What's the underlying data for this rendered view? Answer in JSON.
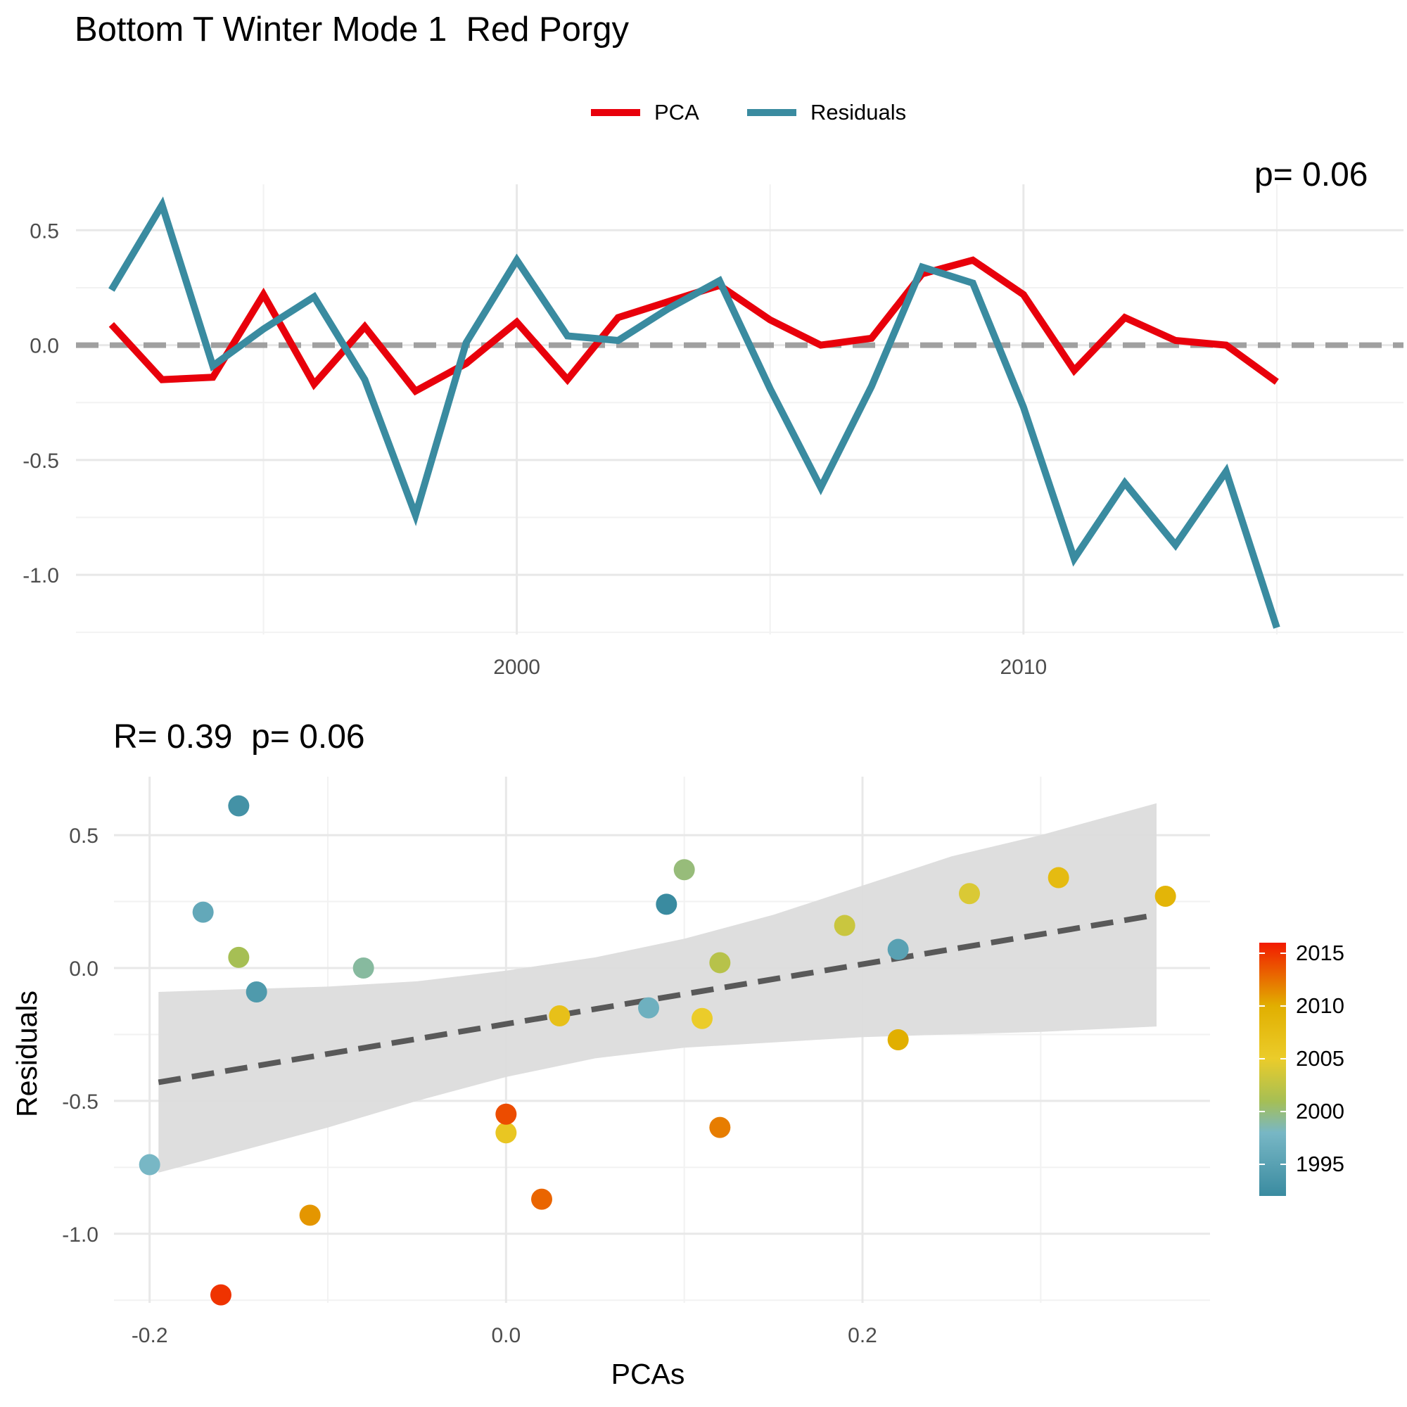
{
  "title": "Bottom T Winter Mode 1  Red Porgy",
  "legend": {
    "items": [
      {
        "label": "PCA",
        "color": "#E8000B"
      },
      {
        "label": "Residuals",
        "color": "#3A8BA0"
      }
    ]
  },
  "colors": {
    "pca": "#E8000B",
    "residuals": "#3A8BA0",
    "zero_line": "#A0A0A0",
    "grid_major": "#E8E8E8",
    "grid_minor": "#F2F2F2",
    "fit_line": "#595959",
    "ribbon": "#DCDCDC"
  },
  "top_corner_text": "p= 0.06",
  "scatter_title": "R= 0.39  p= 0.06",
  "chart_data": [
    {
      "type": "line",
      "title": "Bottom T Winter Mode 1  Red Porgy",
      "xlabel": "",
      "ylabel": "",
      "xlim": [
        1991.3,
        2017.5
      ],
      "ylim": [
        -1.26,
        0.7
      ],
      "x_ticks": [
        2000,
        2010
      ],
      "x_tick_labels": [
        "2000",
        "2010"
      ],
      "y_ticks": [
        0.5,
        0.0,
        -0.5,
        -1.0
      ],
      "y_tick_labels": [
        "0.5",
        "0.0",
        "-0.5",
        "-1.0"
      ],
      "zero_line": 0,
      "grid": true,
      "legend_position": "top",
      "x": [
        1992,
        1993,
        1994,
        1995,
        1996,
        1997,
        1998,
        1999,
        2000,
        2001,
        2002,
        2003,
        2004,
        2005,
        2006,
        2007,
        2008,
        2009,
        2010,
        2011,
        2012,
        2013,
        2014,
        2015,
        2016
      ],
      "series": [
        {
          "name": "PCA",
          "values": [
            0.09,
            -0.15,
            -0.14,
            0.22,
            -0.17,
            0.08,
            -0.2,
            -0.08,
            0.1,
            -0.15,
            0.12,
            0.19,
            0.26,
            0.11,
            0.0,
            0.03,
            0.31,
            0.37,
            0.22,
            -0.11,
            0.12,
            0.02,
            0.0,
            -0.16,
            null
          ]
        },
        {
          "name": "Residuals",
          "values": [
            0.24,
            0.61,
            -0.09,
            0.07,
            0.21,
            -0.15,
            -0.74,
            0.01,
            0.37,
            0.04,
            0.02,
            0.16,
            0.28,
            -0.19,
            -0.62,
            -0.18,
            0.34,
            0.27,
            -0.27,
            -0.93,
            -0.6,
            -0.87,
            -0.55,
            -1.23,
            null
          ]
        }
      ]
    },
    {
      "type": "scatter",
      "title": "R= 0.39  p= 0.06",
      "xlabel": "PCAs",
      "ylabel": "Residuals",
      "xlim": [
        -0.22,
        0.395
      ],
      "ylim": [
        -1.26,
        0.72
      ],
      "x_ticks": [
        -0.2,
        0.0,
        0.2
      ],
      "x_tick_labels": [
        "-0.2",
        "0.0",
        "0.2"
      ],
      "y_ticks": [
        0.5,
        0.0,
        -0.5,
        -1.0
      ],
      "y_tick_labels": [
        "0.5",
        "0.0",
        "-0.5",
        "-1.0"
      ],
      "grid": true,
      "legend_position": "right",
      "points": [
        {
          "x": 0.09,
          "y": 0.24,
          "year": 1992
        },
        {
          "x": -0.15,
          "y": 0.61,
          "year": 1993
        },
        {
          "x": -0.14,
          "y": -0.09,
          "year": 1994
        },
        {
          "x": 0.22,
          "y": 0.07,
          "year": 1995
        },
        {
          "x": -0.17,
          "y": 0.21,
          "year": 1996
        },
        {
          "x": 0.08,
          "y": -0.15,
          "year": 1997
        },
        {
          "x": -0.2,
          "y": -0.74,
          "year": 1998
        },
        {
          "x": -0.08,
          "y": 0.0,
          "year": 1999
        },
        {
          "x": 0.1,
          "y": 0.37,
          "year": 2000
        },
        {
          "x": -0.15,
          "y": 0.04,
          "year": 2001
        },
        {
          "x": 0.12,
          "y": 0.02,
          "year": 2002
        },
        {
          "x": 0.19,
          "y": 0.16,
          "year": 2003
        },
        {
          "x": 0.26,
          "y": 0.28,
          "year": 2004
        },
        {
          "x": 0.11,
          "y": -0.19,
          "year": 2005
        },
        {
          "x": 0.0,
          "y": -0.62,
          "year": 2006
        },
        {
          "x": 0.03,
          "y": -0.18,
          "year": 2007
        },
        {
          "x": 0.31,
          "y": 0.34,
          "year": 2008
        },
        {
          "x": 0.37,
          "y": 0.27,
          "year": 2009
        },
        {
          "x": 0.22,
          "y": -0.27,
          "year": 2010
        },
        {
          "x": -0.11,
          "y": -0.93,
          "year": 2011
        },
        {
          "x": 0.12,
          "y": -0.6,
          "year": 2012
        },
        {
          "x": 0.02,
          "y": -0.87,
          "year": 2013
        },
        {
          "x": 0.0,
          "y": -0.55,
          "year": 2014
        },
        {
          "x": -0.16,
          "y": -1.23,
          "year": 2015
        }
      ],
      "fit_line": {
        "x": [
          -0.195,
          0.365
        ],
        "y": [
          -0.43,
          0.2
        ]
      },
      "confidence_band": {
        "x": [
          -0.195,
          -0.15,
          -0.1,
          -0.05,
          0.0,
          0.05,
          0.1,
          0.15,
          0.2,
          0.25,
          0.3,
          0.365
        ],
        "lower": [
          -0.77,
          -0.69,
          -0.6,
          -0.5,
          -0.41,
          -0.34,
          -0.3,
          -0.28,
          -0.26,
          -0.25,
          -0.24,
          -0.22
        ],
        "upper": [
          -0.09,
          -0.08,
          -0.07,
          -0.05,
          -0.01,
          0.04,
          0.11,
          0.2,
          0.31,
          0.42,
          0.5,
          0.62
        ]
      },
      "colorbar": {
        "title": "",
        "range": [
          1992,
          2016
        ],
        "ticks": [
          2015,
          2010,
          2005,
          2000,
          1995
        ],
        "tick_labels": [
          "2015",
          "2010",
          "2005",
          "2000",
          "1995"
        ],
        "stops": [
          {
            "year": 1992,
            "color": "#3A8BA0"
          },
          {
            "year": 1998,
            "color": "#78B7C5"
          },
          {
            "year": 2001,
            "color": "#A6BF54"
          },
          {
            "year": 2005,
            "color": "#EBCC2A"
          },
          {
            "year": 2010,
            "color": "#E1AF00"
          },
          {
            "year": 2016,
            "color": "#F21A00"
          }
        ]
      }
    }
  ]
}
